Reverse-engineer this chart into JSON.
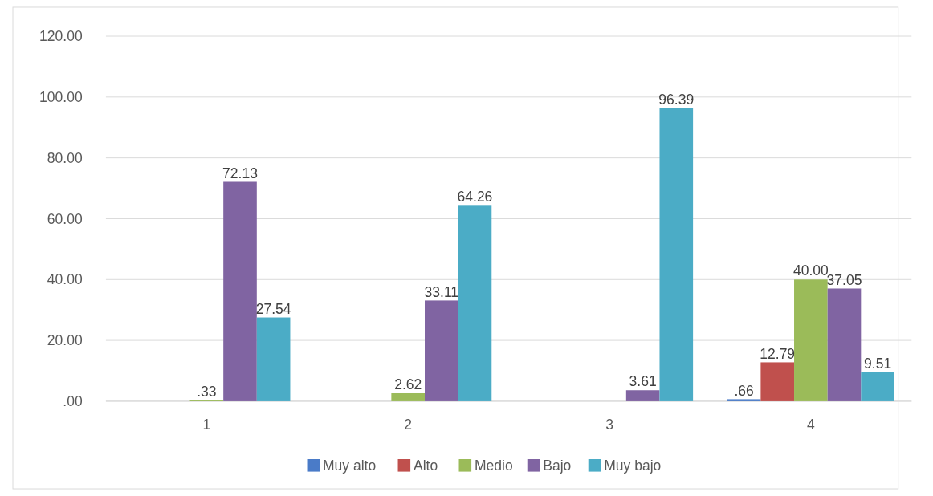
{
  "chart_data": {
    "type": "bar",
    "categories": [
      "1",
      "2",
      "3",
      "4"
    ],
    "series": [
      {
        "name": "Muy alto",
        "color": "#4a7bc8",
        "values": [
          null,
          null,
          null,
          0.66
        ],
        "value_labels": [
          null,
          null,
          null,
          ".66"
        ]
      },
      {
        "name": "Alto",
        "color": "#c0504d",
        "values": [
          null,
          null,
          null,
          12.79
        ],
        "value_labels": [
          null,
          null,
          null,
          "12.79"
        ]
      },
      {
        "name": "Medio",
        "color": "#9bbb59",
        "values": [
          0.33,
          2.62,
          null,
          40.0
        ],
        "value_labels": [
          ".33",
          "2.62",
          null,
          "40.00"
        ]
      },
      {
        "name": "Bajo",
        "color": "#8064a2",
        "values": [
          72.13,
          33.11,
          3.61,
          37.05
        ],
        "value_labels": [
          "72.13",
          "33.11",
          "3.61",
          "37.05"
        ]
      },
      {
        "name": "Muy bajo",
        "color": "#4bacc6",
        "values": [
          27.54,
          64.26,
          96.39,
          9.51
        ],
        "value_labels": [
          "27.54",
          "64.26",
          "96.39",
          "9.51"
        ]
      }
    ],
    "ylim": [
      0,
      120
    ],
    "yticks": [
      {
        "value": 0,
        "label": ".00"
      },
      {
        "value": 20,
        "label": "20.00"
      },
      {
        "value": 40,
        "label": "40.00"
      },
      {
        "value": 60,
        "label": "60.00"
      },
      {
        "value": 80,
        "label": "80.00"
      },
      {
        "value": 100,
        "label": "100.00"
      },
      {
        "value": 120,
        "label": "120.00"
      }
    ],
    "grid": "y",
    "legend": "bottom"
  }
}
